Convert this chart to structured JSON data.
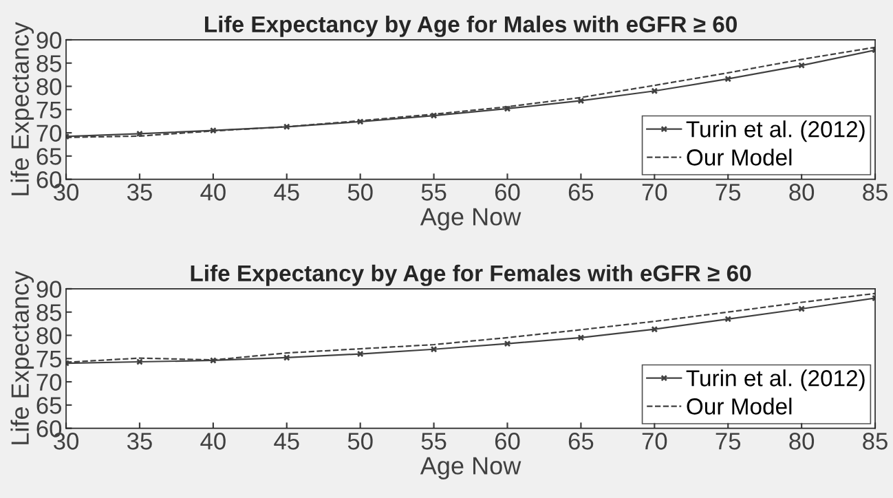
{
  "chart_data": [
    {
      "type": "line",
      "title": "Life Expectancy by Age for Males with eGFR ≥ 60",
      "xlabel": "Age Now",
      "ylabel": "Life Expectancy",
      "x": [
        30,
        35,
        40,
        45,
        50,
        55,
        60,
        65,
        70,
        75,
        80,
        85
      ],
      "series": [
        {
          "name": "Turin et al. (2012)",
          "color": "#404040",
          "line_style": "solid",
          "marker": "cross",
          "values": [
            69.2,
            69.8,
            70.5,
            71.3,
            72.4,
            73.7,
            75.2,
            76.9,
            79.0,
            81.6,
            84.5,
            87.8
          ]
        },
        {
          "name": "Our Model",
          "color": "#404040",
          "line_style": "dashed",
          "marker": "none",
          "values": [
            69.0,
            69.3,
            70.4,
            71.3,
            72.6,
            74.0,
            75.6,
            77.6,
            80.2,
            82.9,
            85.8,
            88.4
          ]
        }
      ],
      "xlim": [
        30,
        85
      ],
      "xticks": [
        30,
        35,
        40,
        45,
        50,
        55,
        60,
        65,
        70,
        75,
        80,
        85
      ],
      "ylim": [
        60,
        90
      ],
      "yticks": [
        60,
        65,
        70,
        75,
        80,
        85,
        90
      ],
      "grid": false,
      "legend": "bottom right"
    },
    {
      "type": "line",
      "title": "Life Expectancy by Age for Females with eGFR ≥ 60",
      "xlabel": "Age Now",
      "ylabel": "Life Expectancy",
      "x": [
        30,
        35,
        40,
        45,
        50,
        55,
        60,
        65,
        70,
        75,
        80,
        85
      ],
      "series": [
        {
          "name": "Turin et al. (2012)",
          "color": "#404040",
          "line_style": "solid",
          "marker": "cross",
          "values": [
            74.0,
            74.3,
            74.6,
            75.2,
            76.0,
            77.0,
            78.2,
            79.5,
            81.3,
            83.5,
            85.7,
            88.0
          ]
        },
        {
          "name": "Our Model",
          "color": "#404040",
          "line_style": "dashed",
          "marker": "none",
          "values": [
            74.2,
            75.1,
            74.7,
            76.2,
            77.1,
            78.0,
            79.5,
            81.2,
            83.0,
            85.0,
            87.1,
            89.0
          ]
        }
      ],
      "xlim": [
        30,
        85
      ],
      "xticks": [
        30,
        35,
        40,
        45,
        50,
        55,
        60,
        65,
        70,
        75,
        80,
        85
      ],
      "ylim": [
        60,
        90
      ],
      "yticks": [
        60,
        65,
        70,
        75,
        80,
        85,
        90
      ],
      "grid": false,
      "legend": "bottom right"
    }
  ]
}
